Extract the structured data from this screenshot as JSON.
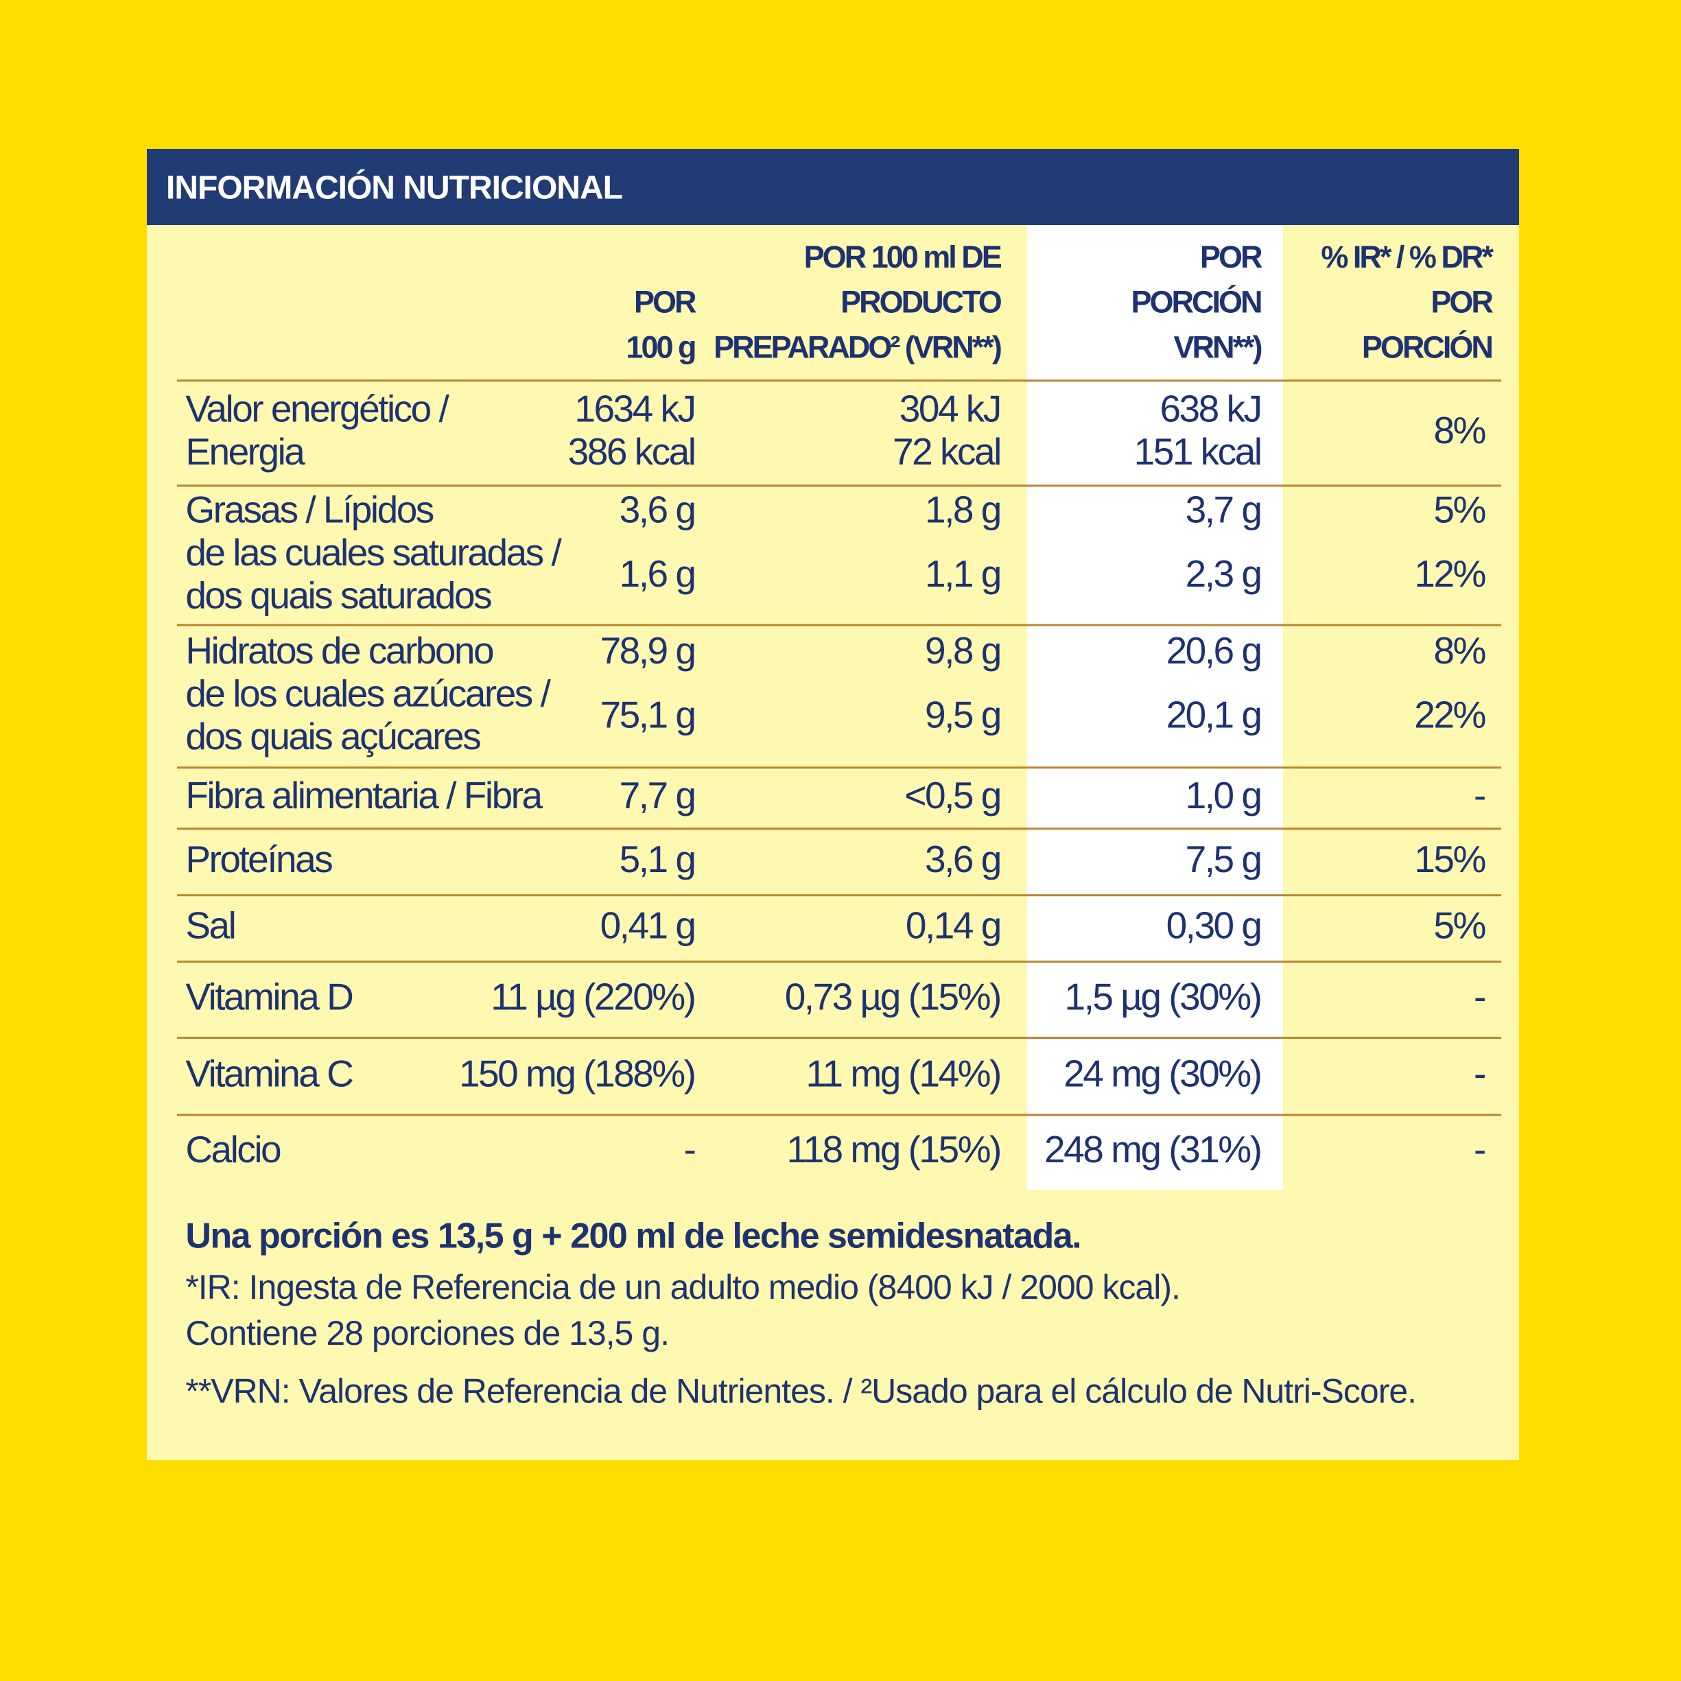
{
  "header": {
    "title": "INFORMACIÓN NUTRICIONAL"
  },
  "table": {
    "columns": [
      [
        "POR",
        "100 g"
      ],
      [
        "POR 100 ml DE",
        "PRODUCTO",
        "PREPARADO² (VRN**)"
      ],
      [
        "POR",
        "PORCIÓN",
        "VRN**)"
      ],
      [
        "% IR* / % DR*",
        "POR",
        "PORCIÓN"
      ]
    ],
    "groups": [
      [
        {
          "label": [
            "Valor energético /",
            "Energia"
          ],
          "cells": [
            [
              "1634 kJ",
              "386 kcal"
            ],
            [
              "304 kJ",
              "72 kcal"
            ],
            [
              "638 kJ",
              "151 kcal"
            ],
            [
              "8%"
            ]
          ]
        }
      ],
      [
        {
          "label": [
            "Grasas / Lípidos"
          ],
          "cells": [
            [
              "3,6 g"
            ],
            [
              "1,8 g"
            ],
            [
              "3,7 g"
            ],
            [
              "5%"
            ]
          ]
        },
        {
          "label": [
            "de las cuales saturadas /",
            "dos quais saturados"
          ],
          "cells": [
            [
              "1,6 g"
            ],
            [
              "1,1 g"
            ],
            [
              "2,3 g"
            ],
            [
              "12%"
            ]
          ]
        }
      ],
      [
        {
          "label": [
            "Hidratos de carbono"
          ],
          "cells": [
            [
              "78,9 g"
            ],
            [
              "9,8 g"
            ],
            [
              "20,6 g"
            ],
            [
              "8%"
            ]
          ]
        },
        {
          "label": [
            "de los cuales azúcares /",
            "dos quais açúcares"
          ],
          "cells": [
            [
              "75,1 g"
            ],
            [
              "9,5 g"
            ],
            [
              "20,1 g"
            ],
            [
              "22%"
            ]
          ]
        }
      ],
      [
        {
          "label": [
            "Fibra alimentaria / Fibra"
          ],
          "cells": [
            [
              "7,7 g"
            ],
            [
              "<0,5 g"
            ],
            [
              "1,0 g"
            ],
            [
              "-"
            ]
          ]
        }
      ],
      [
        {
          "label": [
            "Proteínas"
          ],
          "cells": [
            [
              "5,1 g"
            ],
            [
              "3,6 g"
            ],
            [
              "7,5 g"
            ],
            [
              "15%"
            ]
          ]
        }
      ],
      [
        {
          "label": [
            "Sal"
          ],
          "cells": [
            [
              "0,41 g"
            ],
            [
              "0,14 g"
            ],
            [
              "0,30 g"
            ],
            [
              "5%"
            ]
          ]
        }
      ],
      [
        {
          "label": [
            "Vitamina D"
          ],
          "cells": [
            [
              "11 µg (220%)"
            ],
            [
              "0,73 µg (15%)"
            ],
            [
              "1,5 µg (30%)"
            ],
            [
              "-"
            ]
          ]
        }
      ],
      [
        {
          "label": [
            "Vitamina C"
          ],
          "cells": [
            [
              "150 mg (188%)"
            ],
            [
              "11 mg (14%)"
            ],
            [
              "24 mg (30%)"
            ],
            [
              "-"
            ]
          ]
        }
      ],
      [
        {
          "label": [
            "Calcio"
          ],
          "cells": [
            [
              "-"
            ],
            [
              "118 mg (15%)"
            ],
            [
              "248 mg (31%)"
            ],
            [
              "-"
            ]
          ]
        }
      ]
    ]
  },
  "footer": {
    "serving": "Una porción es 13,5 g + 200 ml de leche semidesnatada.",
    "notes": [
      "*IR: Ingesta de Referencia de un adulto medio (8400 kJ / 2000 kcal).",
      "Contiene 28 porciones de 13,5 g.",
      "**VRN: Valores de Referencia de Nutrientes. / ²Usado para el cálculo de Nutri-Score."
    ]
  }
}
